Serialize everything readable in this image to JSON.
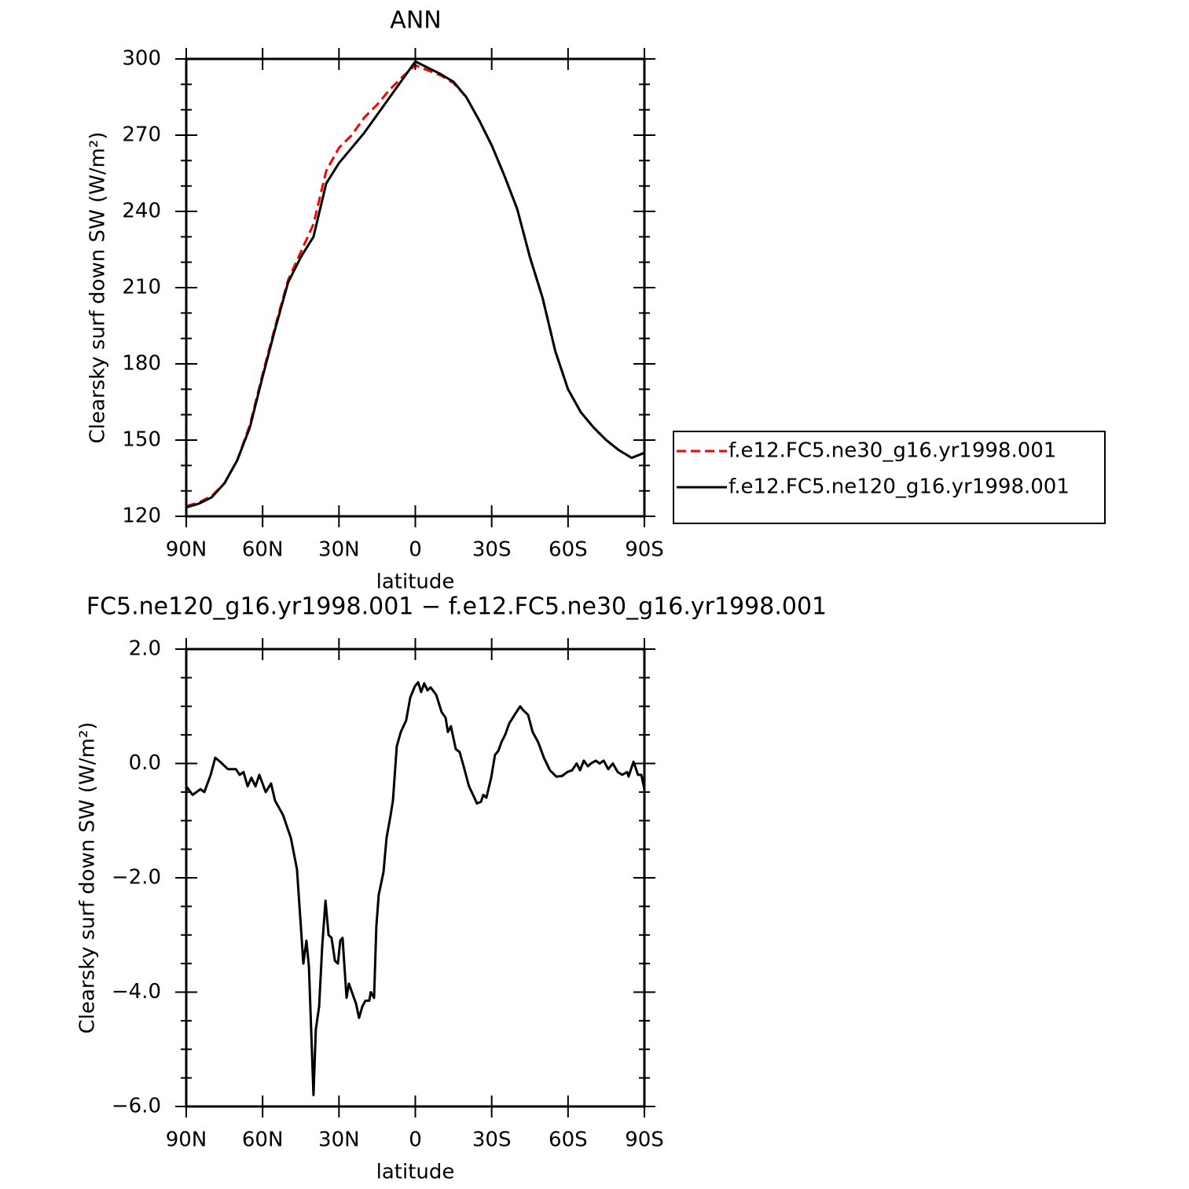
{
  "chart_data": [
    {
      "type": "line",
      "title": "ANN",
      "x_label": "latitude",
      "y_label": "Clearsky surf down SW (W/m²)",
      "x": [
        90,
        85,
        80,
        75,
        70,
        65,
        60,
        55,
        50,
        45,
        40,
        35,
        30,
        25,
        20,
        15,
        10,
        5,
        0,
        -5,
        -10,
        -15,
        -20,
        -25,
        -30,
        -35,
        -40,
        -45,
        -50,
        -55,
        -60,
        -65,
        -70,
        -75,
        -80,
        -85,
        -90
      ],
      "series": [
        {
          "name": "f.e12.FC5.ne30_g16.yr1998.001",
          "color": "#ff0000",
          "dash": "dashed",
          "values": [
            124,
            125.5,
            128,
            133,
            142,
            156,
            176,
            195,
            213,
            224,
            235,
            256,
            265,
            270,
            277,
            282,
            288,
            293,
            297.5,
            295.5,
            293.5,
            290.5,
            285,
            276,
            266,
            254,
            241,
            222,
            206,
            185,
            170,
            161,
            155,
            150,
            146,
            143,
            145
          ]
        },
        {
          "name": "f.e12.FC5.ne120_g16.yr1998.001",
          "color": "#000000",
          "dash": "solid",
          "values": [
            123.5,
            125,
            127.5,
            133,
            142,
            155,
            175,
            194,
            212,
            222,
            230,
            251,
            259,
            265,
            271,
            278,
            285,
            292,
            299,
            296.5,
            294,
            291,
            285,
            276,
            266,
            254,
            241,
            222,
            206,
            185,
            170,
            161,
            155,
            150,
            146,
            143,
            145
          ]
        }
      ],
      "xlim": [
        90,
        -90
      ],
      "xticks": [
        {
          "value": 90,
          "label": "90N"
        },
        {
          "value": 60,
          "label": "60N"
        },
        {
          "value": 30,
          "label": "30N"
        },
        0,
        {
          "value": -30,
          "label": "30S"
        },
        {
          "value": -60,
          "label": "60S"
        },
        {
          "value": -90,
          "label": "90S"
        }
      ],
      "ylim": [
        120,
        300
      ],
      "yticks": [
        120,
        150,
        180,
        210,
        240,
        270,
        300
      ],
      "legend": "right"
    },
    {
      "type": "line",
      "title": "FC5.ne120_g16.yr1998.001 − f.e12.FC5.ne30_g16.yr1998.001",
      "x_label": "latitude",
      "y_label": "Clearsky surf down SW (W/m²)",
      "color": "#000000",
      "x": [
        90,
        87.5,
        84.4,
        82.9,
        80.4,
        78.6,
        76.7,
        73.6,
        70.5,
        69,
        67.5,
        65.9,
        64.4,
        62.8,
        61.3,
        58.8,
        56.7,
        55.1,
        52,
        48.9,
        46.5,
        45.2,
        44,
        42.8,
        41.8,
        40,
        39.1,
        37.8,
        36.6,
        35.3,
        34.1,
        32.9,
        31.6,
        30.4,
        29.5,
        28.6,
        27,
        26.1,
        24.5,
        23.3,
        22.1,
        20.8,
        19.6,
        18.1,
        17.5,
        16.2,
        15.3,
        14.4,
        12.5,
        11.3,
        9.7,
        8.8,
        7.3,
        5.7,
        3.6,
        2,
        0.2,
        -1.1,
        -2.3,
        -3.5,
        -4.8,
        -6,
        -8.2,
        -10.3,
        -11.9,
        -12.8,
        -14,
        -15.9,
        -17.4,
        -19,
        -21.1,
        -22.7,
        -24.2,
        -25.8,
        -26.7,
        -27.9,
        -29.8,
        -31.3,
        -32.6,
        -33.8,
        -35.3,
        -36.9,
        -39,
        -41.2,
        -42.4,
        -44.3,
        -46.1,
        -48.3,
        -50.5,
        -52.9,
        -55.4,
        -57.6,
        -59.7,
        -61.6,
        -63.4,
        -64.7,
        -66.2,
        -67.8,
        -69,
        -70.9,
        -72.4,
        -74,
        -75.8,
        -77.6,
        -79.5,
        -81.3,
        -83.2,
        -83.8,
        -85.7,
        -87.5,
        -88.8,
        -90
      ],
      "values": [
        -0.4,
        -0.55,
        -0.45,
        -0.5,
        -0.2,
        0.1,
        0.03,
        -0.1,
        -0.1,
        -0.2,
        -0.15,
        -0.4,
        -0.25,
        -0.4,
        -0.2,
        -0.5,
        -0.35,
        -0.65,
        -0.9,
        -1.3,
        -1.85,
        -2.7,
        -3.5,
        -3.1,
        -3.55,
        -5.8,
        -4.65,
        -4.25,
        -3.2,
        -2.4,
        -3.0,
        -3.05,
        -3.45,
        -3.5,
        -3.1,
        -3.05,
        -4.1,
        -3.85,
        -4.05,
        -4.2,
        -4.45,
        -4.25,
        -4.15,
        -4.15,
        -4.0,
        -4.1,
        -2.85,
        -2.3,
        -1.9,
        -1.3,
        -0.9,
        -0.65,
        0.3,
        0.55,
        0.75,
        1.15,
        1.35,
        1.42,
        1.25,
        1.4,
        1.28,
        1.33,
        1.2,
        0.9,
        0.8,
        0.55,
        0.65,
        0.25,
        0.2,
        -0.05,
        -0.4,
        -0.55,
        -0.7,
        -0.67,
        -0.55,
        -0.6,
        -0.25,
        0.15,
        0.22,
        0.37,
        0.5,
        0.7,
        0.85,
        1.0,
        0.93,
        0.85,
        0.55,
        0.37,
        0.1,
        -0.12,
        -0.23,
        -0.22,
        -0.15,
        -0.12,
        0.0,
        -0.12,
        0.05,
        -0.05,
        0.0,
        0.05,
        0.0,
        0.05,
        -0.1,
        0.0,
        -0.15,
        -0.2,
        -0.15,
        -0.23,
        0.03,
        -0.2,
        -0.2,
        -0.45
      ],
      "xlim": [
        90,
        -90
      ],
      "xticks": [
        {
          "value": 90,
          "label": "90N"
        },
        {
          "value": 60,
          "label": "60N"
        },
        {
          "value": 30,
          "label": "30N"
        },
        0,
        {
          "value": -30,
          "label": "30S"
        },
        {
          "value": -60,
          "label": "60S"
        },
        {
          "value": -90,
          "label": "90S"
        }
      ],
      "ylim": [
        -6,
        2
      ],
      "yticks": [
        {
          "value": -6,
          "label": "−6.0"
        },
        {
          "value": -4,
          "label": "−4.0"
        },
        {
          "value": -2,
          "label": "−2.0"
        },
        {
          "value": 0,
          "label": "0.0"
        },
        {
          "value": 2,
          "label": "2.0"
        }
      ]
    }
  ]
}
